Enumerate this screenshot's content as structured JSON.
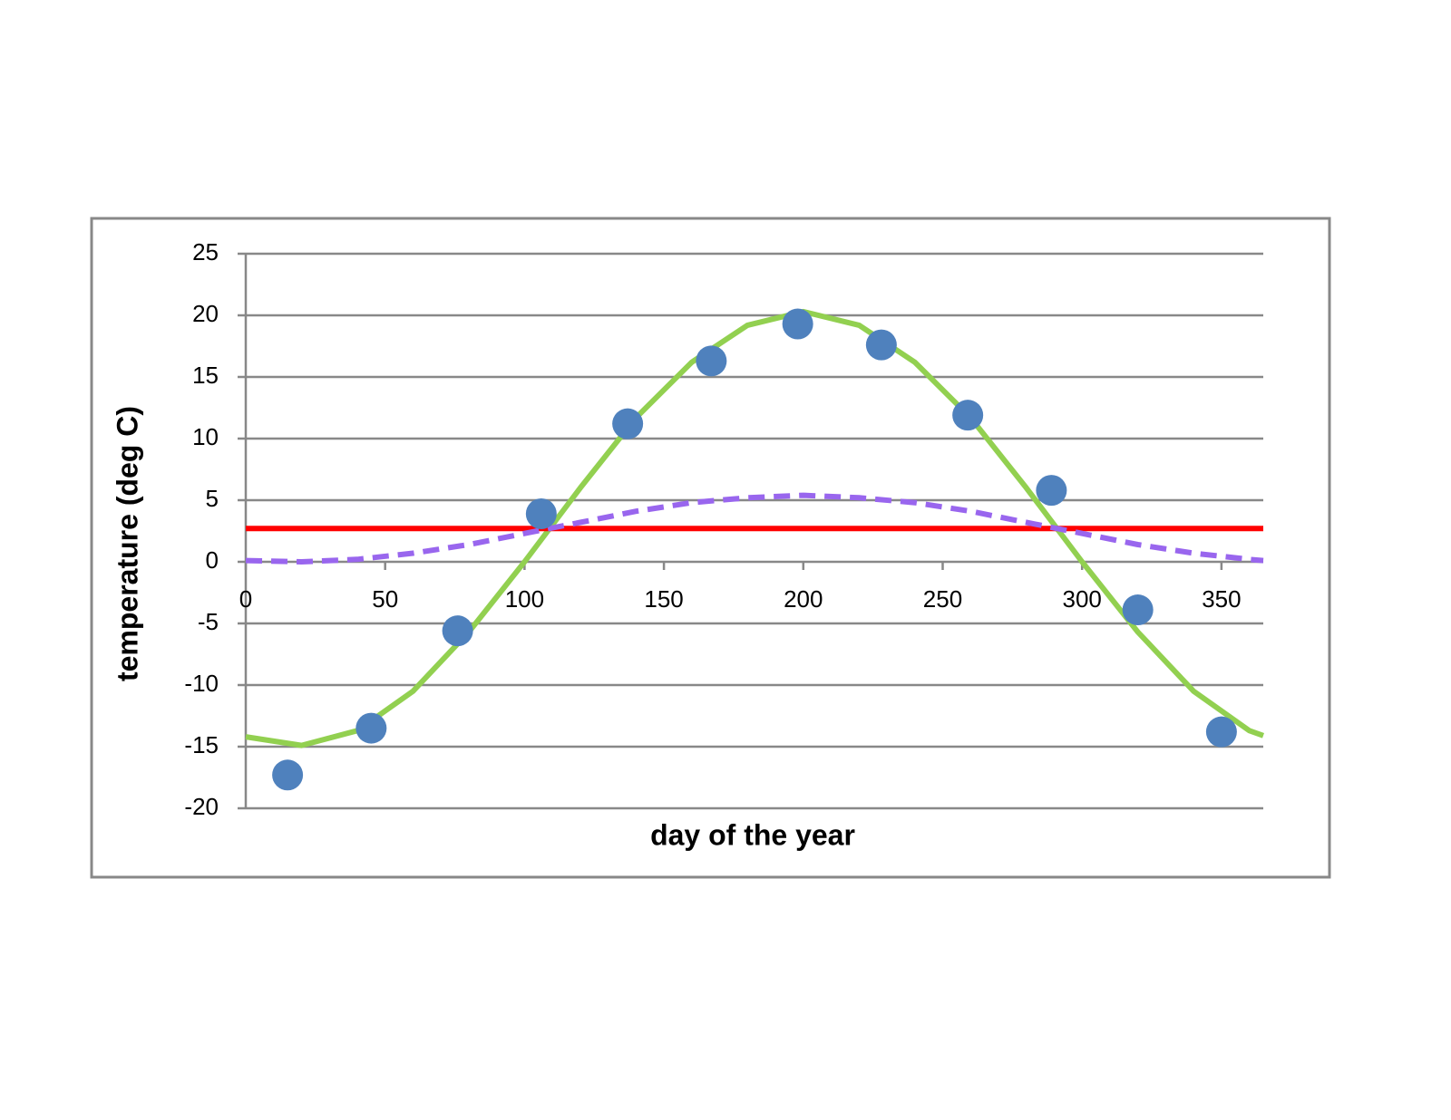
{
  "chart_data": {
    "type": "scatter",
    "x_label": "day of the year",
    "y_label": "temperature (deg C)",
    "xlim": [
      0,
      365
    ],
    "xticks": [
      0,
      50,
      100,
      150,
      200,
      250,
      300,
      350
    ],
    "ylim": [
      -20,
      25
    ],
    "yticks": [
      -20,
      -15,
      -10,
      -5,
      0,
      5,
      10,
      15,
      20,
      25
    ],
    "grid": true,
    "series": [
      {
        "style": "marker",
        "color": "#4f81bd",
        "x": [
          15,
          45,
          76,
          106,
          137,
          167,
          198,
          228,
          259,
          289,
          320,
          350
        ],
        "values": [
          -17.3,
          -13.5,
          -5.6,
          3.9,
          11.2,
          16.3,
          19.3,
          17.6,
          11.9,
          5.8,
          -3.9,
          -13.8
        ]
      },
      {
        "style": "solid",
        "color": "#92d050",
        "x": [
          0,
          20,
          40,
          60,
          80,
          100,
          120,
          140,
          160,
          180,
          200,
          220,
          240,
          260,
          280,
          300,
          320,
          340,
          360,
          365
        ],
        "values": [
          -14.2,
          -14.9,
          -13.7,
          -10.5,
          -5.7,
          0,
          6,
          11.7,
          16.2,
          19.2,
          20.3,
          19.2,
          16.2,
          11.7,
          6,
          0,
          -5.7,
          -10.5,
          -13.7,
          -14.1
        ]
      },
      {
        "style": "solid",
        "color": "#ff0000",
        "x": [
          0,
          365
        ],
        "values": [
          2.7,
          2.7
        ]
      },
      {
        "style": "dashed",
        "color": "#9966ee",
        "x": [
          0,
          20,
          40,
          60,
          80,
          100,
          120,
          140,
          160,
          180,
          200,
          220,
          240,
          260,
          280,
          300,
          320,
          340,
          360,
          365
        ],
        "values": [
          0.1,
          0,
          0.2,
          0.7,
          1.4,
          2.3,
          3.2,
          4.1,
          4.8,
          5.2,
          5.4,
          5.2,
          4.8,
          4.1,
          3.2,
          2.3,
          1.4,
          0.7,
          0.2,
          0.1
        ]
      }
    ]
  }
}
